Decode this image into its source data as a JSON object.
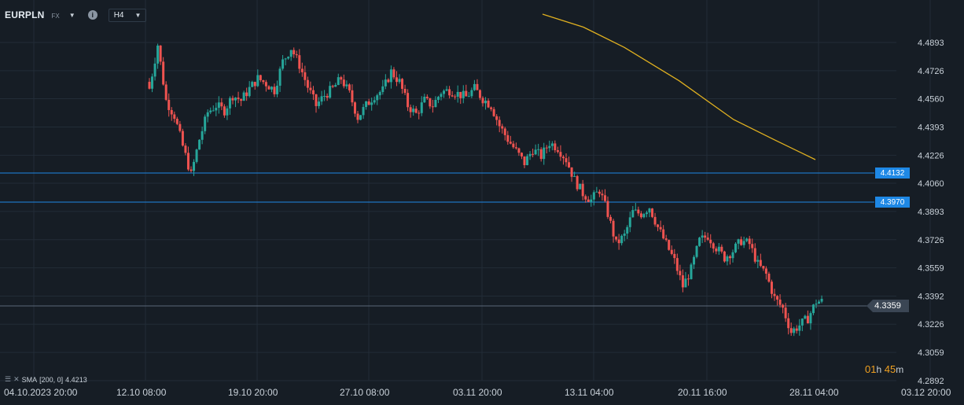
{
  "toolbar": {
    "symbol": "EURPLN",
    "market": "FX",
    "timeframe": "H4",
    "info_icon": "i"
  },
  "indicator": {
    "label": "SMA",
    "params": "[200, 0]",
    "value": "4.4213"
  },
  "countdown": {
    "hours": "01",
    "hours_unit": "h",
    "minutes": "45",
    "minutes_unit": "m"
  },
  "lines": {
    "level1": "4.4132",
    "level2": "4.3970",
    "current": "4.3359"
  },
  "colors": {
    "background": "#161d25",
    "up": "#26a69a",
    "down": "#ef5350",
    "hline": "#1e88e5",
    "sma": "#e0b020"
  },
  "chart_data": {
    "type": "candlestick",
    "y_ticks": [
      "4.4893",
      "4.4726",
      "4.4560",
      "4.4393",
      "4.4226",
      "4.4060",
      "4.3893",
      "4.3726",
      "4.3559",
      "4.3392",
      "4.3226",
      "4.3059",
      "4.2892"
    ],
    "ylim": [
      4.2892,
      4.506
    ],
    "x_ticks": [
      "04.10.2023  20:00",
      "12.10  08:00",
      "19.10  20:00",
      "27.10  08:00",
      "03.11  20:00",
      "13.11  04:00",
      "20.11  16:00",
      "28.11  04:00",
      "03.12  20:00"
    ],
    "horizontal_lines": [
      4.4132,
      4.397,
      4.3359
    ],
    "sma_200": [
      {
        "x": 0.0,
        "y": 4.5
      },
      {
        "x": 0.15,
        "y": 4.493
      },
      {
        "x": 0.3,
        "y": 4.482
      },
      {
        "x": 0.5,
        "y": 4.464
      },
      {
        "x": 0.7,
        "y": 4.443
      },
      {
        "x": 0.85,
        "y": 4.432
      },
      {
        "x": 1.0,
        "y": 4.4213
      }
    ],
    "close_path": [
      4.462,
      4.488,
      4.455,
      4.446,
      4.428,
      4.411,
      4.432,
      4.448,
      4.452,
      4.449,
      4.458,
      4.455,
      4.462,
      4.468,
      4.465,
      4.461,
      4.478,
      4.486,
      4.476,
      4.463,
      4.452,
      4.458,
      4.462,
      4.468,
      4.459,
      4.445,
      4.452,
      4.458,
      4.461,
      4.472,
      4.466,
      4.452,
      4.447,
      4.455,
      4.452,
      4.46,
      4.461,
      4.459,
      4.457,
      4.462,
      4.456,
      4.452,
      4.44,
      4.432,
      4.425,
      4.418,
      4.426,
      4.422,
      4.43,
      4.427,
      4.42,
      4.408,
      4.4,
      4.396,
      4.402,
      4.388,
      4.37,
      4.375,
      4.389,
      4.388,
      4.392,
      4.38,
      4.37,
      4.36,
      4.345,
      4.355,
      4.372,
      4.375,
      4.368,
      4.362,
      4.366,
      4.372,
      4.37,
      4.358,
      4.352,
      4.338,
      4.332,
      4.318,
      4.322,
      4.326,
      4.336
    ]
  }
}
